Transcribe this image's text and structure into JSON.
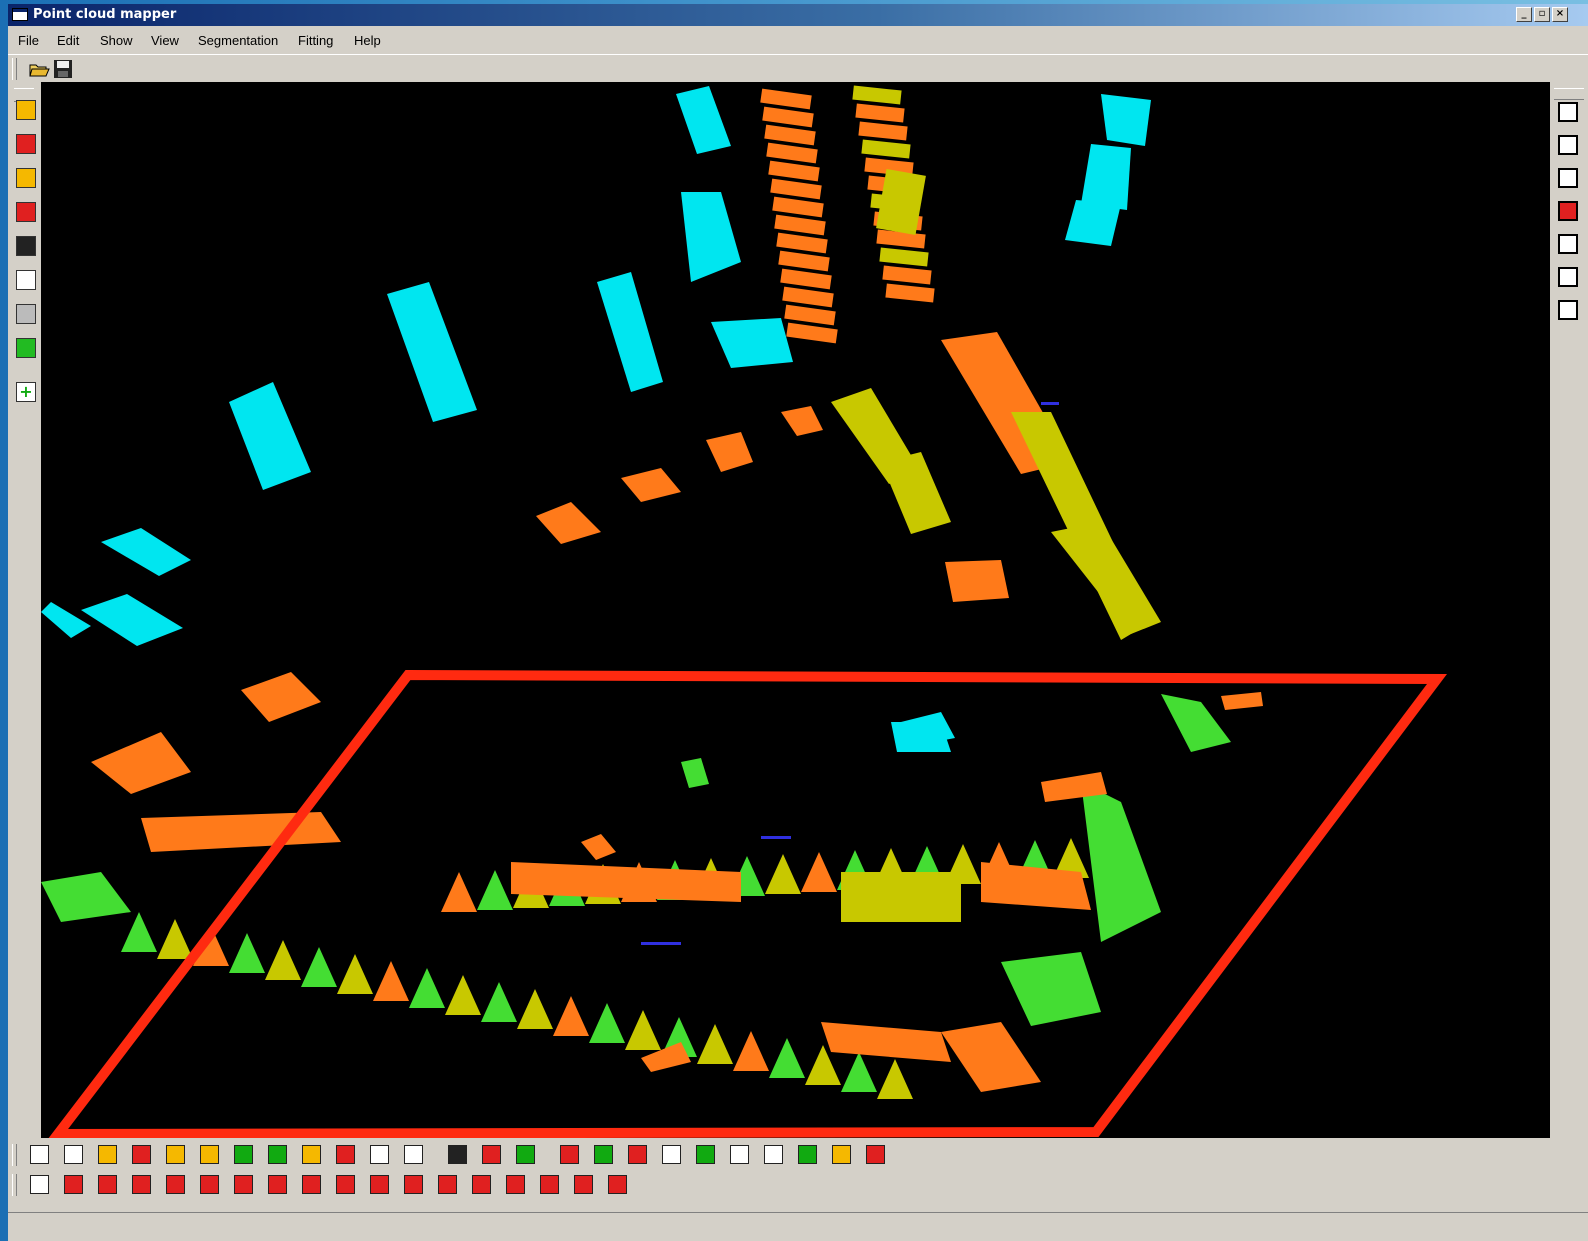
{
  "window": {
    "title": "Point cloud mapper"
  },
  "menu": [
    "File",
    "Edit",
    "Show",
    "View",
    "Segmentation",
    "Fitting",
    "Help"
  ],
  "toolbar_top": [
    {
      "icon": "open-folder-icon"
    },
    {
      "icon": "save-disk-icon"
    }
  ],
  "left_toolbar": [
    {
      "icon": "select-region-icon",
      "color": "#f5b800"
    },
    {
      "icon": "select-building-icon",
      "color": "#e02020"
    },
    {
      "icon": "roof-segment-icon",
      "color": "#f5b800"
    },
    {
      "icon": "house-outline-icon",
      "color": "#e02020"
    },
    {
      "icon": "point-grid-icon",
      "color": "#222222"
    },
    {
      "icon": "gradient-white-icon",
      "color": "#ffffff"
    },
    {
      "icon": "gradient-gray-icon",
      "color": "#bbbbbb"
    },
    {
      "icon": "green-edit-icon",
      "color": "#22bb22"
    },
    {
      "icon": "add-plus-icon",
      "color": "#ffffff"
    }
  ],
  "right_toolbar": [
    {
      "icon": "eye-view-icon-1"
    },
    {
      "icon": "eye-view-icon-2"
    },
    {
      "icon": "eye-view-icon-3"
    },
    {
      "icon": "eye-view-icon-4"
    },
    {
      "icon": "eye-view-icon-5"
    },
    {
      "icon": "eye-view-icon-6"
    },
    {
      "icon": "eye-view-icon-7"
    }
  ],
  "bottom_toolbar_1": [
    "rotate-icon",
    "crosshair-icon",
    "select-orange-icon",
    "select-red-icon",
    "select-yellow-icon",
    "select-white-icon",
    "select-green-icon",
    "select-dark-green-icon",
    "building-orange-icon",
    "building-red-icon",
    "polygon-icon",
    "square-outline-icon",
    "points-white-icon",
    "points-red-icon",
    "points-green-icon",
    "rotate-red-icon",
    "green-square-icon",
    "cross-red-icon",
    "double-arrow-icon",
    "line-green-icon",
    "outline-white-icon",
    "outline-green-icon",
    "outline-check-icon",
    "outline-orange-icon",
    "building-outline-icon"
  ],
  "bottom_toolbar_2": [
    "rect-white-icon",
    "stripes-red-icon",
    "grid-red-icon",
    "bars-red-icon",
    "hatch-red-icon",
    "cross-hatch-icon",
    "diag-red-icon",
    "x-red-icon",
    "h-bars-icon",
    "v-bars-icon",
    "target-icon",
    "flower-red-icon",
    "arrows-red-icon",
    "stack-red-icon",
    "steps-red-icon",
    "grid2-red-icon",
    "dots-red-icon",
    "star-red-icon"
  ],
  "colors": {
    "canvas_bg": "#000000",
    "cyan": "#00e6f0",
    "orange": "#ff7a1a",
    "yellow_green": "#c8c800",
    "green": "#44dd33",
    "blue": "#3030e0",
    "selection_outline": "#ff2a10"
  }
}
